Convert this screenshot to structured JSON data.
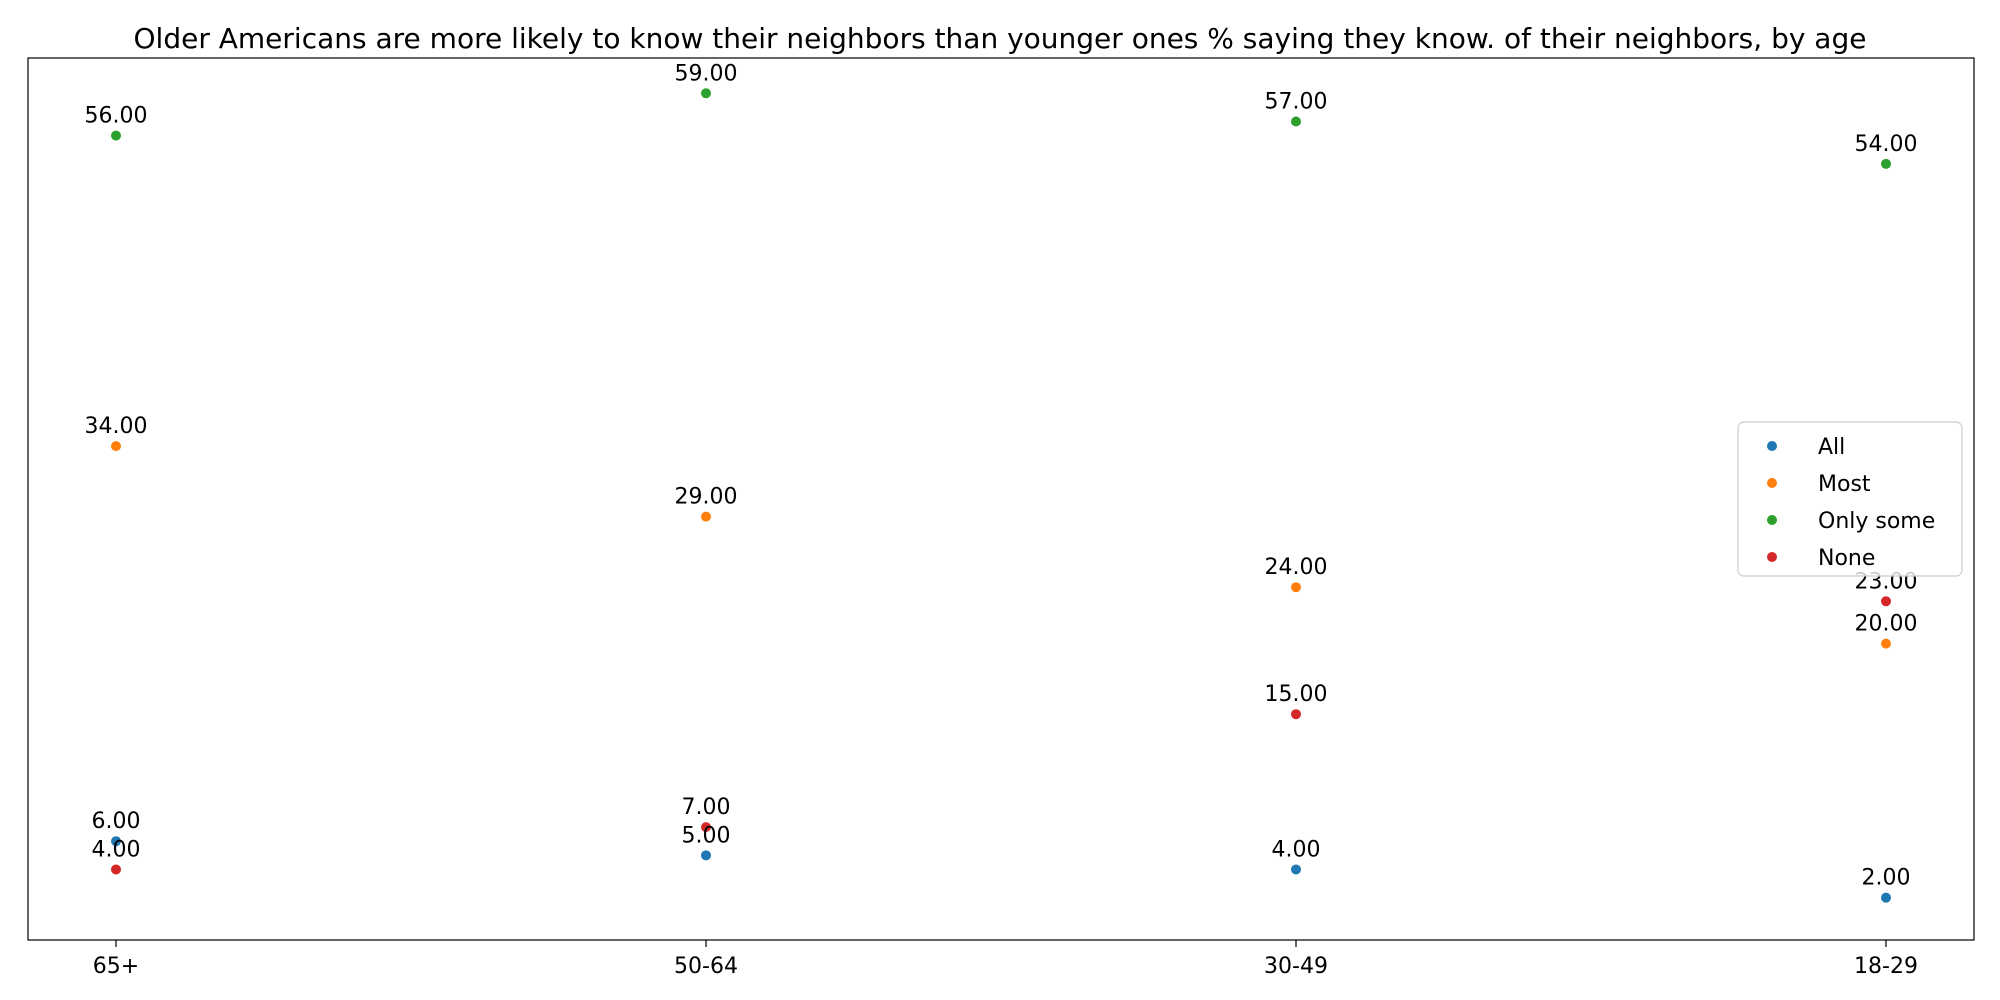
{
  "chart_data": {
    "type": "scatter",
    "title": "Older Americans are more likely to know their neighbors than younger ones % saying they know. of their neighbors, by age",
    "xlabel": "",
    "ylabel": "",
    "categories": [
      "65+",
      "50-64",
      "30-49",
      "18-29"
    ],
    "ylim": [
      -1.0,
      61.5
    ],
    "grid": false,
    "legend_position": "center-right",
    "series": [
      {
        "name": "All",
        "color": "#1f77b4",
        "values": [
          6,
          5,
          4,
          2
        ],
        "labels": [
          "6.00",
          "5.00",
          "4.00",
          "2.00"
        ]
      },
      {
        "name": "Most",
        "color": "#ff7f0e",
        "values": [
          34,
          29,
          24,
          20
        ],
        "labels": [
          "34.00",
          "29.00",
          "24.00",
          "20.00"
        ]
      },
      {
        "name": "Only some",
        "color": "#2ca02c",
        "values": [
          56,
          59,
          57,
          54
        ],
        "labels": [
          "56.00",
          "59.00",
          "57.00",
          "54.00"
        ]
      },
      {
        "name": "None",
        "color": "#d62728",
        "values": [
          4,
          7,
          15,
          23
        ],
        "labels": [
          "4.00",
          "7.00",
          "15.00",
          "23.00"
        ]
      }
    ]
  }
}
